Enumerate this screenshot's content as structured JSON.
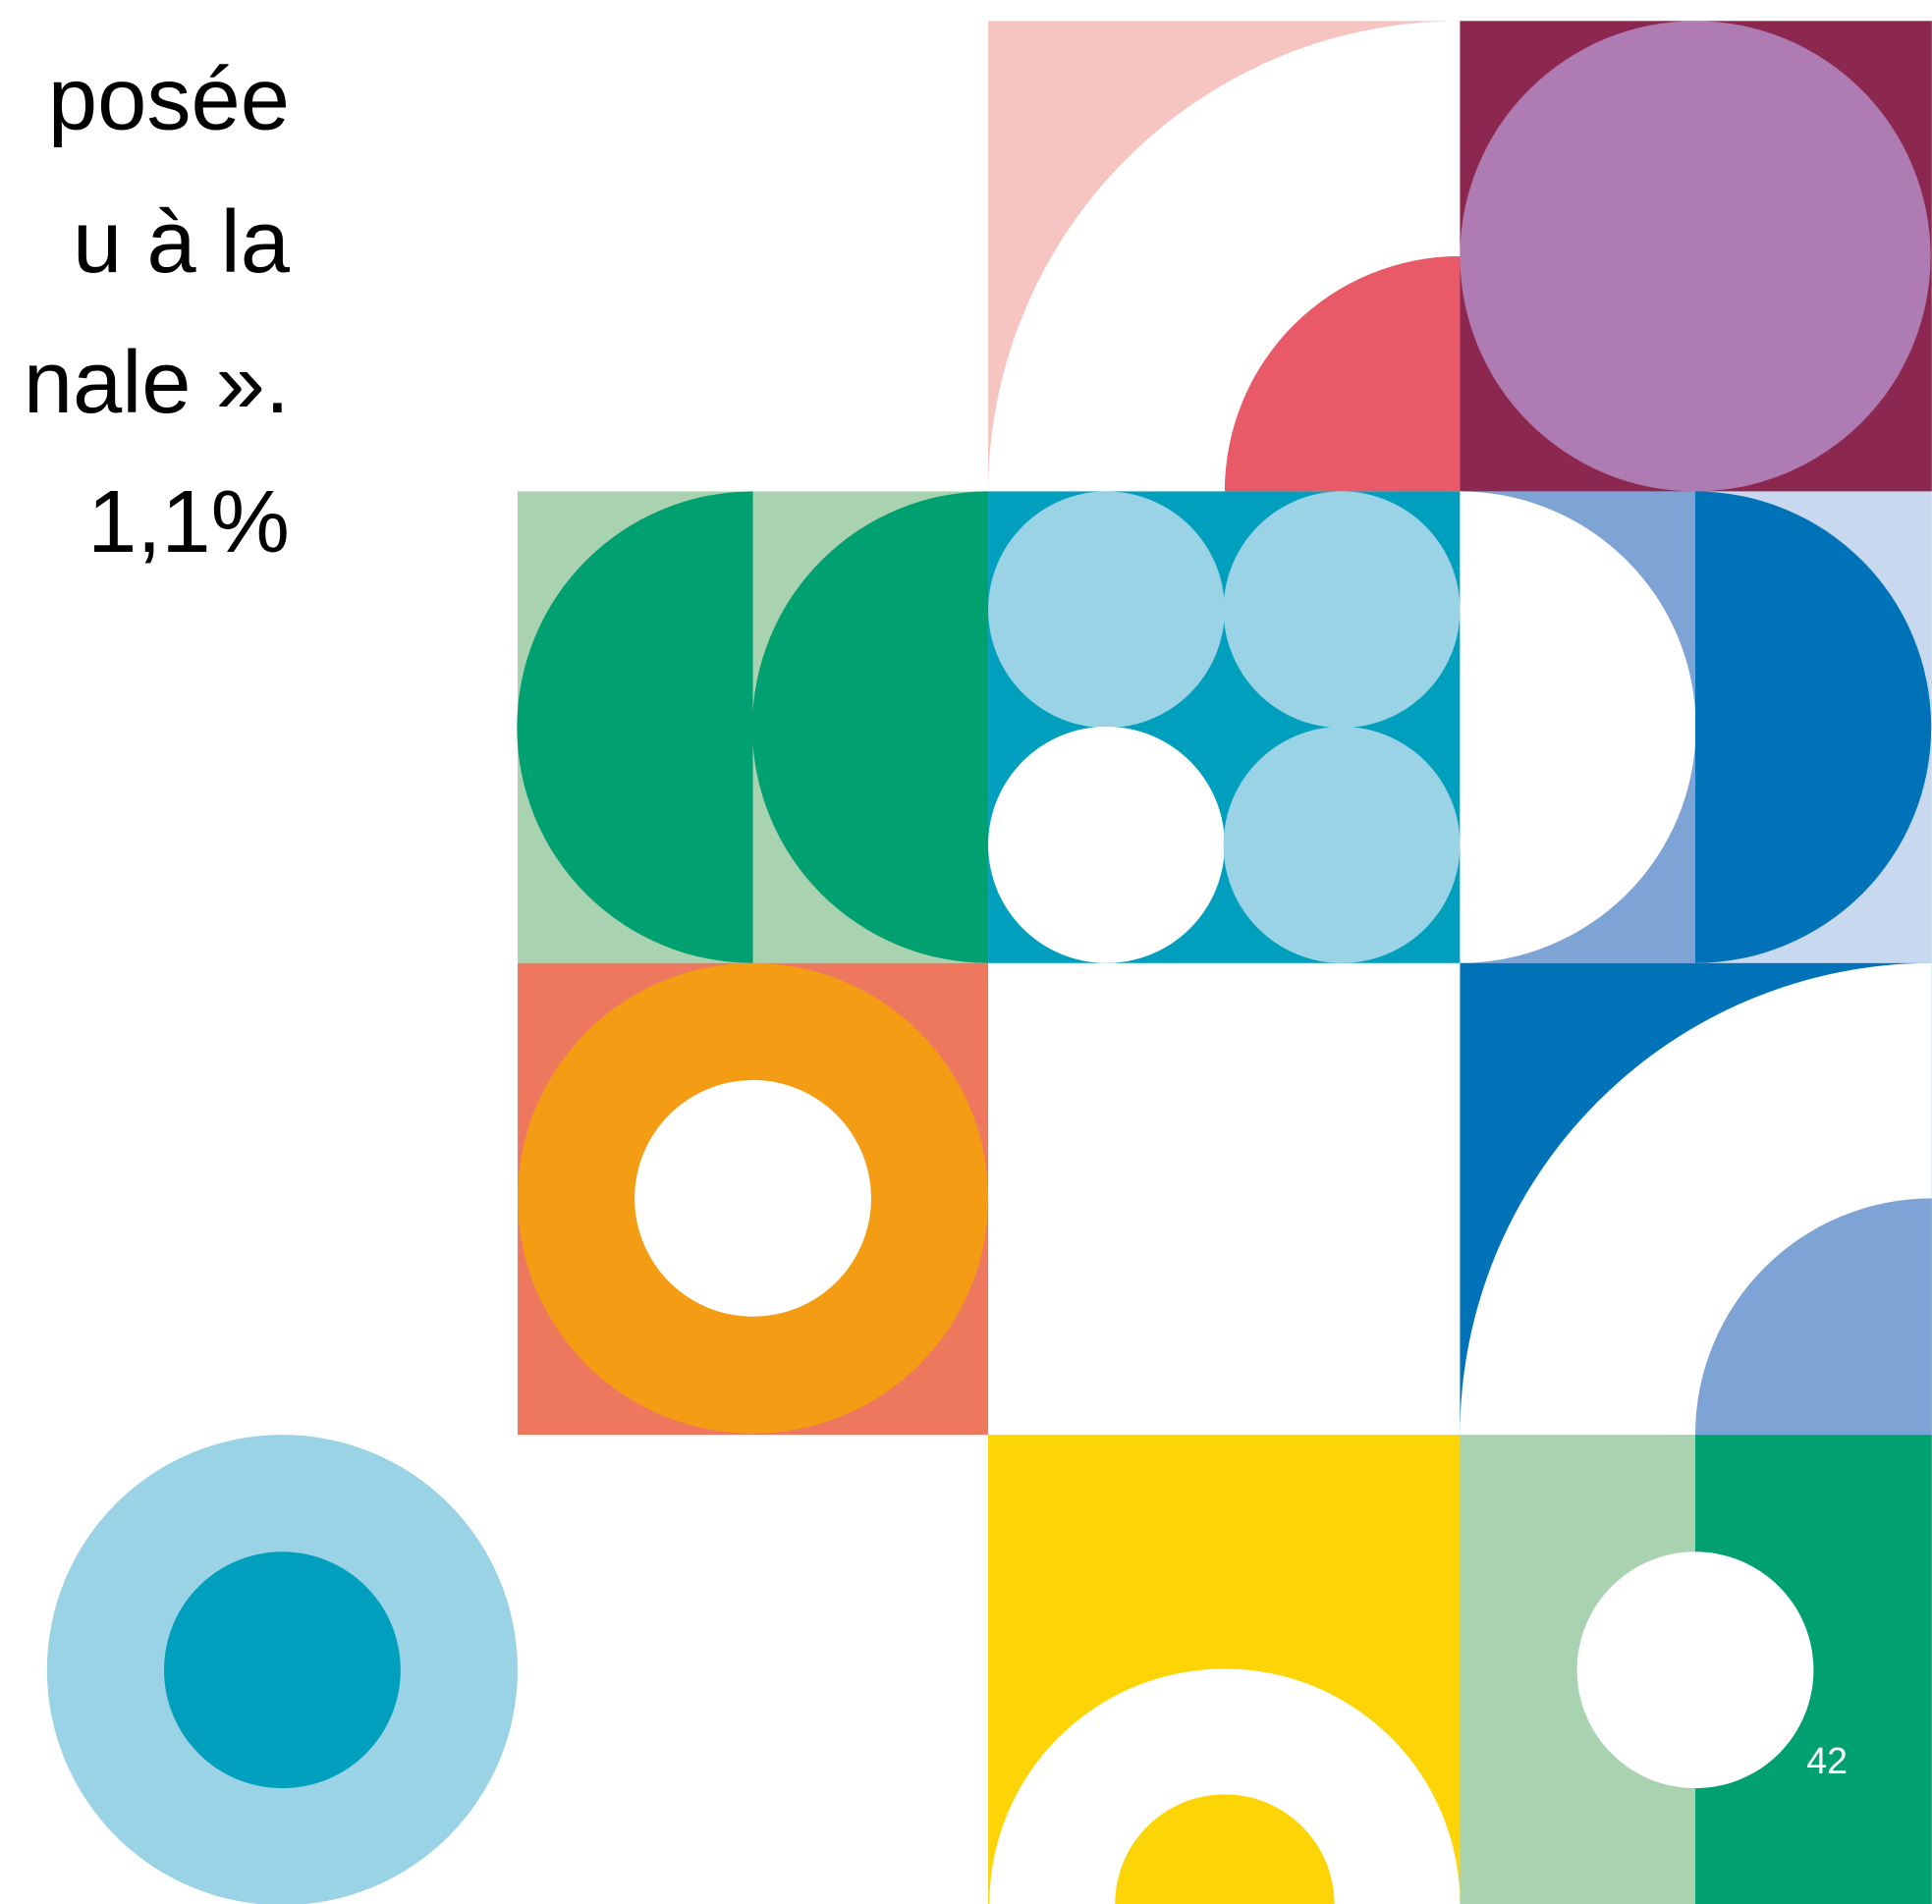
{
  "text": {
    "lines": [
      "posée",
      "u à la",
      "nale ».",
      "1,1%"
    ]
  },
  "page_number": "42"
}
